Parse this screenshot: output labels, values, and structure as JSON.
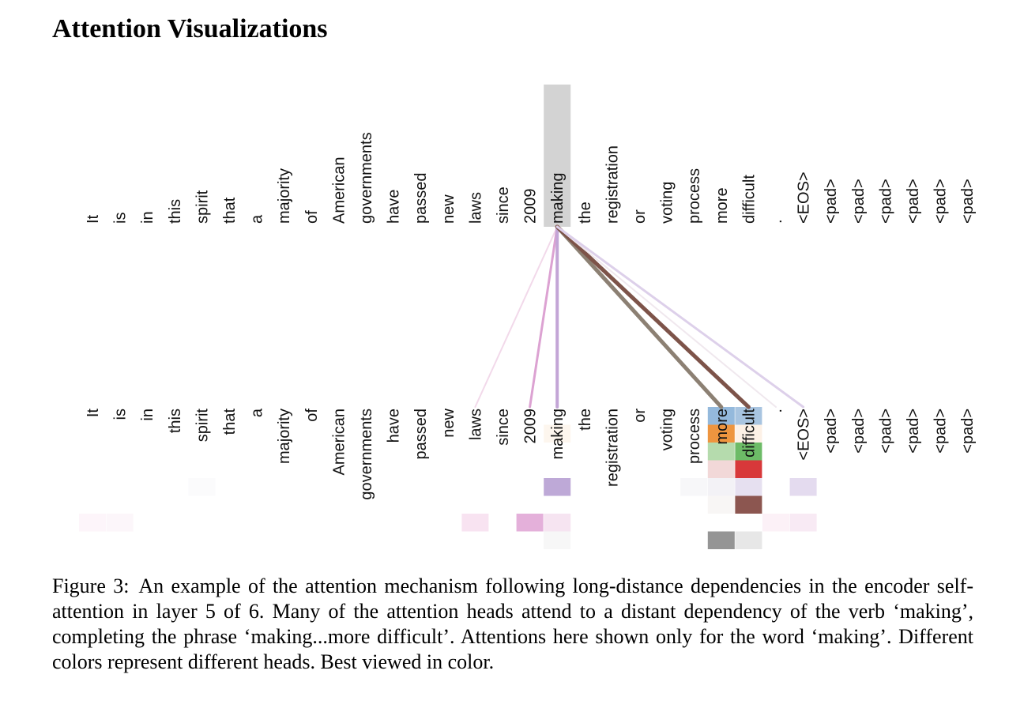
{
  "page": {
    "title": "Attention Visualizations"
  },
  "figure": {
    "tokens": [
      "It",
      "is",
      "in",
      "this",
      "spirit",
      "that",
      "a",
      "majority",
      "of",
      "American",
      "governments",
      "have",
      "passed",
      "new",
      "laws",
      "since",
      "2009",
      "making",
      "the",
      "registration",
      "or",
      "voting",
      "process",
      "more",
      "difficult",
      ".",
      "<EOS>",
      "<pad>",
      "<pad>",
      "<pad>",
      "<pad>",
      "<pad>",
      "<pad>"
    ],
    "query_token_index": 17,
    "query_highlight_color": "#d3d3d3",
    "head_colors": [
      "#9dbcd9",
      "#ee9e56",
      "#a6d6a0",
      "#e87f80",
      "#c7b4d9",
      "#8b5a50",
      "#f0c4df",
      "#909090"
    ],
    "connections": [
      {
        "target": 14,
        "color": "#f2d9ea",
        "weight": 2
      },
      {
        "target": 16,
        "color": "#dca2d2",
        "weight": 3
      },
      {
        "target": 17,
        "color": "#c3a5d6",
        "weight": 4
      },
      {
        "target": 23,
        "color": "#8c8073",
        "weight": 5
      },
      {
        "target": 24,
        "color": "#7d5349",
        "weight": 5
      },
      {
        "target": 25,
        "color": "#f0e8ee",
        "weight": 2
      },
      {
        "target": 26,
        "color": "#ddd0ea",
        "weight": 3
      }
    ],
    "cells": [
      {
        "t": 23,
        "h": 0,
        "color": "#94b9dc"
      },
      {
        "t": 24,
        "h": 0,
        "color": "#a8c4e0"
      },
      {
        "t": 23,
        "h": 1,
        "color": "#ee953f"
      },
      {
        "t": 24,
        "h": 1,
        "color": "#fdf1e6"
      },
      {
        "t": 17,
        "h": 1,
        "color": "#fdf6ee"
      },
      {
        "t": 23,
        "h": 2,
        "color": "#b5dbad"
      },
      {
        "t": 24,
        "h": 2,
        "color": "#6dbb67"
      },
      {
        "t": 23,
        "h": 3,
        "color": "#f2d8d8"
      },
      {
        "t": 24,
        "h": 3,
        "color": "#d8383a"
      },
      {
        "t": 4,
        "h": 4,
        "color": "#fbfbfc"
      },
      {
        "t": 17,
        "h": 4,
        "color": "#bea9d7"
      },
      {
        "t": 22,
        "h": 4,
        "color": "#f7f7f9"
      },
      {
        "t": 23,
        "h": 4,
        "color": "#f3f2f6"
      },
      {
        "t": 24,
        "h": 4,
        "color": "#e6e0f0"
      },
      {
        "t": 26,
        "h": 4,
        "color": "#e4dbef"
      },
      {
        "t": 23,
        "h": 5,
        "color": "#f8f6f5"
      },
      {
        "t": 24,
        "h": 5,
        "color": "#8c5650"
      },
      {
        "t": 0,
        "h": 6,
        "color": "#fdf5fa"
      },
      {
        "t": 1,
        "h": 6,
        "color": "#fcf6fa"
      },
      {
        "t": 14,
        "h": 6,
        "color": "#f8e3f1"
      },
      {
        "t": 16,
        "h": 6,
        "color": "#e4b0da"
      },
      {
        "t": 17,
        "h": 6,
        "color": "#f6e4f1"
      },
      {
        "t": 25,
        "h": 6,
        "color": "#fcf1f7"
      },
      {
        "t": 26,
        "h": 6,
        "color": "#f8eaf4"
      },
      {
        "t": 17,
        "h": 7,
        "color": "#f7f7f7"
      },
      {
        "t": 23,
        "h": 7,
        "color": "#959595"
      },
      {
        "t": 24,
        "h": 7,
        "color": "#e7e7e7"
      }
    ]
  },
  "caption": {
    "label": "Figure 3:",
    "text": "An example of the attention mechanism following long-distance dependencies in the encoder self-attention in layer 5 of 6. Many of the attention heads attend to a distant dependency of the verb ‘making’, completing the phrase ‘making...more difficult’. Attentions here shown only for the word ‘making’. Different colors represent different heads. Best viewed in color."
  }
}
